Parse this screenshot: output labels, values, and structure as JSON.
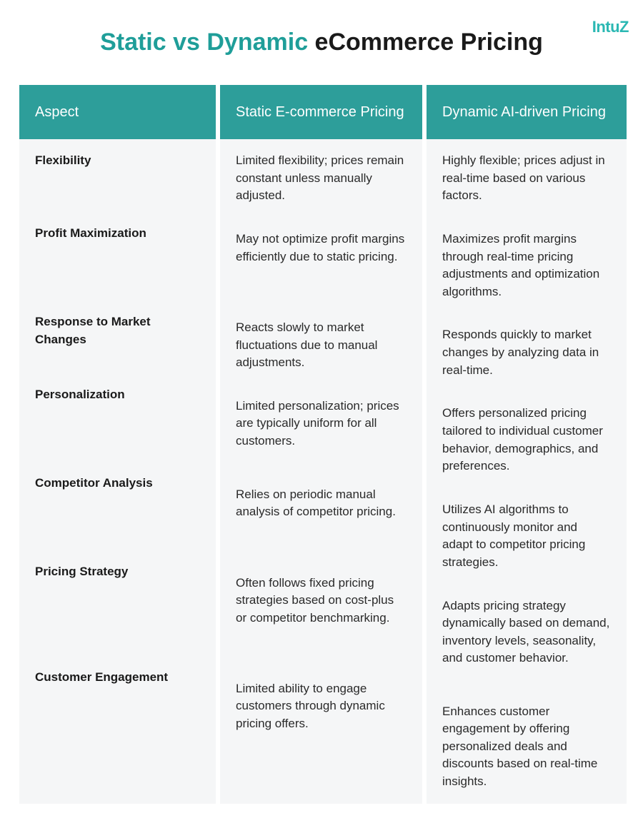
{
  "logo": {
    "text": "IntuZ",
    "color": "#2bb8b3"
  },
  "title": {
    "accent_text": "Static vs Dynamic",
    "main_text": " eCommerce Pricing",
    "accent_color": "#1f9e99",
    "main_color": "#1a1a1a"
  },
  "colors": {
    "header_bg": "#2d9e9a",
    "body_bg": "#f5f6f7",
    "body_aspect_bg": "#f5f6f7"
  },
  "columns": {
    "aspect": {
      "header": "Aspect"
    },
    "static": {
      "header": "Static E-commerce Pricing"
    },
    "dynamic": {
      "header": "Dynamic AI-driven Pricing"
    }
  },
  "rows": [
    {
      "aspect": "Flexibility",
      "static": "Limited flexibility; prices remain constant unless manually adjusted.",
      "dynamic": "Highly flexible; prices adjust in real-time based on various factors."
    },
    {
      "aspect": "Profit Maximization",
      "static": "May not optimize profit margins efficiently due to static pricing.",
      "dynamic": "Maximizes profit margins through real-time pricing adjustments and optimization algorithms."
    },
    {
      "aspect": "Response to Market Changes",
      "static": "Reacts slowly to market fluctuations due to manual adjustments.",
      "dynamic": "Responds quickly to market changes by analyzing data in real-time."
    },
    {
      "aspect": "Personalization",
      "static": "Limited personalization; prices are typically uniform for all customers.",
      "dynamic": "Offers personalized pricing tailored to individual customer behavior, demographics, and preferences."
    },
    {
      "aspect": "Competitor Analysis",
      "static": "Relies on periodic manual analysis of competitor pricing.",
      "dynamic": "Utilizes AI algorithms to continuously monitor and adapt to competitor pricing strategies."
    },
    {
      "aspect": "Pricing Strategy",
      "static": "Often follows fixed pricing strategies based on cost-plus or competitor benchmarking.",
      "dynamic": "Adapts pricing strategy dynamically based on demand, inventory levels, seasonality, and customer behavior."
    },
    {
      "aspect": "Customer Engagement",
      "static": "Limited ability to engage customers through dynamic pricing offers.",
      "dynamic": "Enhances customer engagement by offering personalized deals and discounts based on real-time insights."
    }
  ]
}
